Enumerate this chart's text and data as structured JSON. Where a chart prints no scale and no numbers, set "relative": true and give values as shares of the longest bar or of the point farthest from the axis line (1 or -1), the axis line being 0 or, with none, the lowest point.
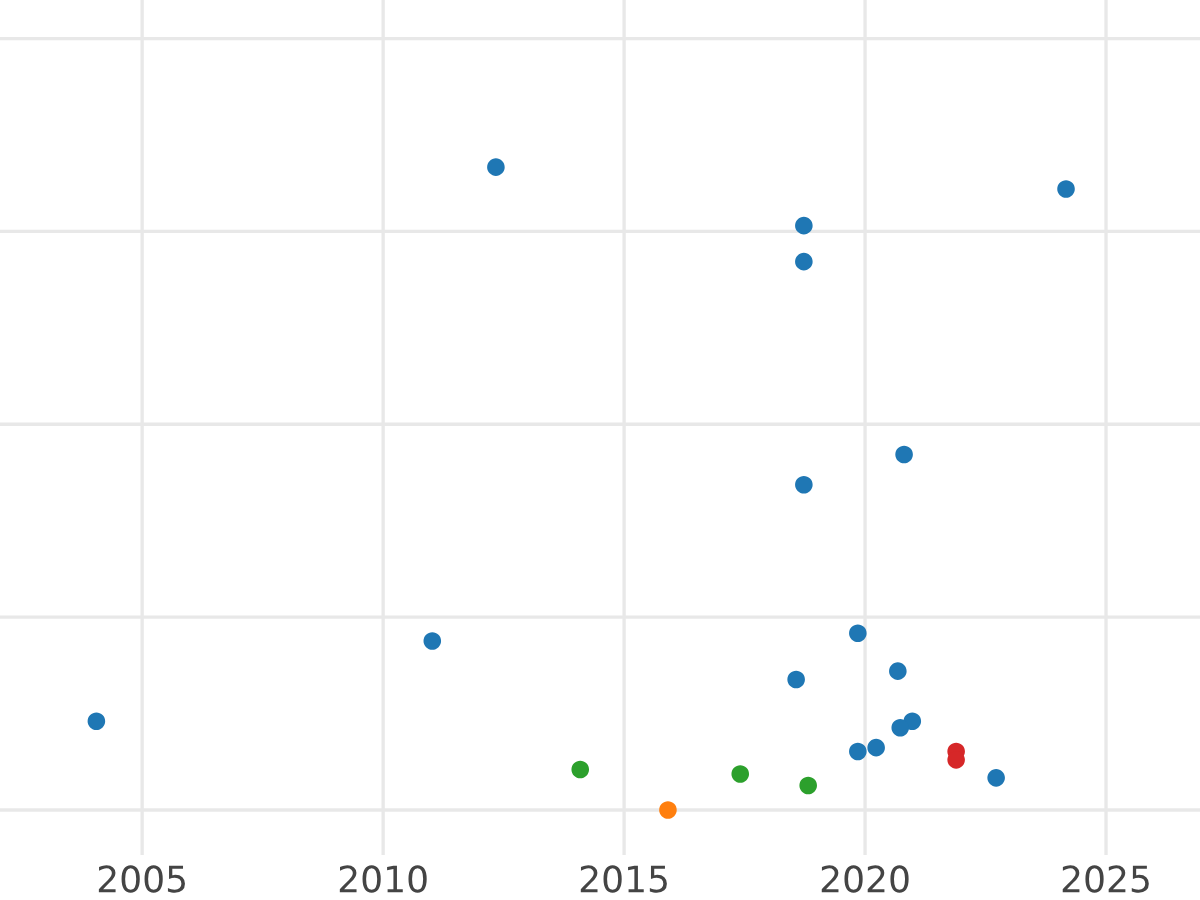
{
  "chart_data": {
    "type": "scatter",
    "relative": true,
    "xlim": [
      2002.05,
      2026.95
    ],
    "xticks": [
      2005,
      2010,
      2015,
      2020,
      2025
    ],
    "tick_labels": "x",
    "grid": true,
    "marker": "circle",
    "series": [
      {
        "color": "#1f77b4",
        "x": [
          2012.34,
          2024.17,
          2018.73,
          2018.73,
          2020.81,
          2018.73,
          2011.02,
          2019.85,
          2020.68,
          2018.57,
          2004.05,
          2020.98,
          2020.73,
          2020.23,
          2019.85,
          2022.72
        ],
        "values": [
          1,
          0.966,
          0.909,
          0.853,
          0.553,
          0.506,
          0.263,
          0.275,
          0.216,
          0.203,
          0.138,
          0.138,
          0.128,
          0.097,
          0.091,
          0.05
        ]
      },
      {
        "color": "#2ca02c",
        "x": [
          2014.09,
          2017.41,
          2018.82
        ],
        "values": [
          0.063,
          0.056,
          0.038
        ]
      },
      {
        "color": "#ff7f0e",
        "x": [
          2015.91
        ],
        "values": [
          0
        ]
      },
      {
        "color": "#d62728",
        "x": [
          2021.89,
          2021.89
        ],
        "values": [
          0.091,
          0.078
        ]
      }
    ]
  }
}
